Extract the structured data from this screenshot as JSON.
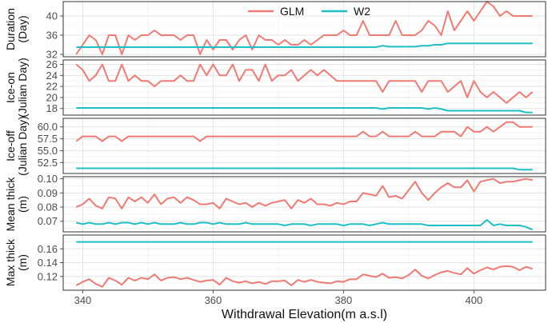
{
  "chart_data": {
    "type": "line",
    "xlabel": "Withdrawal Elevation(m a.s.l)",
    "xlim": [
      337,
      411
    ],
    "xticks": [
      "340",
      "360",
      "380",
      "400"
    ],
    "xtick_values": [
      340,
      360,
      380,
      400
    ],
    "legend": {
      "placement": "top-center",
      "entries": [
        {
          "name": "GLM",
          "color": "#f07a73"
        },
        {
          "name": "W2",
          "color": "#1fbfc6"
        }
      ]
    },
    "grid": true,
    "x": [
      339,
      340,
      341,
      342,
      343,
      344,
      345,
      346,
      347,
      348,
      349,
      350,
      351,
      352,
      353,
      354,
      355,
      356,
      357,
      358,
      359,
      360,
      361,
      362,
      363,
      364,
      365,
      366,
      367,
      368,
      369,
      370,
      371,
      372,
      373,
      374,
      375,
      376,
      377,
      378,
      379,
      380,
      381,
      382,
      383,
      384,
      385,
      386,
      387,
      388,
      389,
      390,
      391,
      392,
      393,
      394,
      395,
      396,
      397,
      398,
      399,
      400,
      401,
      402,
      403,
      404,
      405,
      406,
      407,
      408,
      409
    ],
    "panels": [
      {
        "ylabel": [
          "Duration",
          "(Day)"
        ],
        "ylim": [
          31.5,
          43
        ],
        "yticks": [
          "32",
          "36",
          "40"
        ],
        "ytick_values": [
          32,
          36,
          40
        ],
        "series": [
          {
            "name": "GLM",
            "values": [
              32,
              34,
              36,
              35,
              32,
              36,
              36,
              32,
              36,
              35,
              36,
              36,
              37,
              36,
              36,
              36,
              35,
              36,
              36,
              32,
              35,
              33,
              35,
              35,
              33,
              35,
              36,
              33,
              36,
              35,
              35,
              34,
              35,
              34,
              34,
              35,
              34,
              35,
              36,
              36,
              36,
              37,
              36,
              36,
              39,
              36,
              36,
              36,
              36,
              39,
              36,
              36,
              36,
              37,
              39,
              38,
              36,
              41,
              37,
              39,
              41,
              39,
              41,
              43,
              42,
              40,
              41,
              40,
              40,
              40,
              40
            ]
          },
          {
            "name": "W2",
            "values": [
              33.5,
              33.5,
              33.5,
              33.5,
              33.5,
              33.5,
              33.5,
              33.5,
              33.5,
              33.5,
              33.5,
              33.5,
              33.5,
              33.5,
              33.5,
              33.5,
              33.5,
              33.5,
              33.5,
              33.5,
              33.5,
              33.5,
              33.5,
              33.5,
              33.5,
              33.5,
              33.5,
              33.5,
              33.5,
              33.5,
              33.5,
              33.5,
              33.5,
              33.5,
              33.5,
              33.5,
              33.5,
              33.5,
              33.5,
              33.5,
              33.5,
              33.5,
              33.5,
              33.5,
              33.5,
              33.5,
              33.5,
              33.8,
              33.6,
              33.6,
              33.6,
              33.6,
              33.6,
              33.8,
              33.8,
              34,
              34,
              34.3,
              34.3,
              34.3,
              34.3,
              34.3,
              34.3,
              34.3,
              34.3,
              34.3,
              34.3,
              34.3,
              34.3,
              34.3,
              34.3
            ]
          }
        ]
      },
      {
        "ylabel": [
          "Ice-on",
          "(Julian Day)"
        ],
        "ylim": [
          16.8,
          26.8
        ],
        "yticks": [
          "18",
          "20",
          "22",
          "24",
          "26"
        ],
        "ytick_values": [
          18,
          20,
          22,
          24,
          26
        ],
        "series": [
          {
            "name": "GLM",
            "values": [
              26,
              25,
              23,
              24,
              26,
              23,
              23,
              26,
              23,
              24,
              23,
              23,
              22,
              23,
              23,
              23,
              24,
              23,
              23,
              26,
              24,
              26,
              24,
              24,
              26,
              23,
              25,
              25,
              23,
              26,
              23,
              24,
              24,
              25,
              23,
              24,
              25,
              24,
              25,
              24,
              23,
              23,
              23,
              23,
              23,
              23,
              23,
              21,
              23,
              23,
              23,
              23,
              23,
              21,
              23,
              23,
              23,
              21,
              22,
              23,
              20,
              23,
              21,
              20,
              21,
              20,
              19,
              20,
              21,
              20,
              21
            ]
          },
          {
            "name": "W2",
            "values": [
              18.1,
              18.1,
              18.1,
              18.1,
              18.1,
              18.1,
              18.1,
              18.1,
              18.1,
              18.1,
              18.1,
              18.1,
              18.1,
              18.1,
              18.1,
              18.1,
              18.1,
              18.1,
              18.1,
              18.1,
              18.1,
              18.1,
              18.1,
              18.1,
              18.1,
              18.1,
              18.1,
              18.1,
              18.1,
              18.1,
              18.1,
              18.1,
              18.1,
              18.1,
              18.1,
              18.1,
              18.1,
              18.1,
              18.1,
              18.1,
              18.1,
              18.1,
              18.1,
              18.1,
              18.1,
              18.1,
              18.1,
              17.9,
              18.1,
              18.1,
              18.1,
              18.1,
              18.1,
              18.1,
              17.9,
              18.1,
              17.9,
              17.6,
              17.6,
              17.6,
              17.6,
              17.6,
              17.6,
              17.6,
              17.6,
              17.6,
              17.6,
              17.6,
              17.6,
              17.3,
              17.3
            ]
          }
        ]
      },
      {
        "ylabel": [
          "Ice-off",
          "(Julian Day)"
        ],
        "ylim": [
          50.2,
          61.8
        ],
        "yticks": [
          "52.5",
          "55.0",
          "57.5",
          "60.0"
        ],
        "ytick_values": [
          52.5,
          55.0,
          57.5,
          60.0
        ],
        "series": [
          {
            "name": "GLM",
            "values": [
              57,
              58,
              58,
              58,
              57,
              58,
              58,
              57,
              58,
              58,
              58,
              58,
              58,
              58,
              58,
              58,
              58,
              58,
              58,
              57,
              58,
              58,
              58,
              58,
              58,
              58,
              58,
              58,
              58,
              58,
              58,
              58,
              58,
              58,
              58,
              58,
              58,
              58,
              58,
              58,
              58,
              58,
              58,
              58,
              59,
              58,
              58,
              59,
              58,
              58,
              58,
              58,
              59,
              58,
              58,
              58,
              59,
              59,
              59,
              58,
              60,
              59,
              59,
              60,
              59,
              60,
              61,
              61,
              60,
              60,
              60
            ]
          },
          {
            "name": "W2",
            "values": [
              51.3,
              51.3,
              51.3,
              51.3,
              51.3,
              51.3,
              51.3,
              51.3,
              51.3,
              51.3,
              51.3,
              51.3,
              51.3,
              51.3,
              51.3,
              51.3,
              51.3,
              51.3,
              51.3,
              51.3,
              51.3,
              51.3,
              51.3,
              51.3,
              51.3,
              51.3,
              51.3,
              51.3,
              51.3,
              51.3,
              51.3,
              51.3,
              51.3,
              51.3,
              51.3,
              51.3,
              51.3,
              51.3,
              51.3,
              51.3,
              51.3,
              51.3,
              51.3,
              51.3,
              51.3,
              51.3,
              51.3,
              51.3,
              51.3,
              51.3,
              51.3,
              51.3,
              51.3,
              51.3,
              51.3,
              51.3,
              51.3,
              51.3,
              51.3,
              51.3,
              51.3,
              51.3,
              51.3,
              51.3,
              51.3,
              51.3,
              51.3,
              51.3,
              51.0,
              51.0,
              51.0
            ]
          }
        ]
      },
      {
        "ylabel": [
          "Mean thick",
          "(m)"
        ],
        "ylim": [
          0.0625,
          0.1015
        ],
        "yticks": [
          "0.07",
          "0.08",
          "0.09",
          "0.10"
        ],
        "ytick_values": [
          0.07,
          0.08,
          0.09,
          0.1
        ],
        "series": [
          {
            "name": "GLM",
            "values": [
              0.08,
              0.082,
              0.086,
              0.081,
              0.079,
              0.087,
              0.086,
              0.079,
              0.087,
              0.084,
              0.087,
              0.083,
              0.089,
              0.082,
              0.086,
              0.087,
              0.083,
              0.087,
              0.085,
              0.082,
              0.082,
              0.083,
              0.079,
              0.086,
              0.084,
              0.082,
              0.083,
              0.08,
              0.083,
              0.081,
              0.083,
              0.084,
              0.085,
              0.079,
              0.085,
              0.083,
              0.086,
              0.082,
              0.082,
              0.081,
              0.083,
              0.082,
              0.084,
              0.084,
              0.09,
              0.089,
              0.088,
              0.095,
              0.087,
              0.088,
              0.086,
              0.092,
              0.098,
              0.09,
              0.085,
              0.09,
              0.094,
              0.097,
              0.094,
              0.094,
              0.099,
              0.091,
              0.098,
              0.099,
              0.1,
              0.097,
              0.098,
              0.098,
              0.099,
              0.1,
              0.099
            ]
          },
          {
            "name": "W2",
            "values": [
              0.069,
              0.068,
              0.069,
              0.068,
              0.068,
              0.069,
              0.068,
              0.069,
              0.069,
              0.068,
              0.069,
              0.068,
              0.069,
              0.068,
              0.068,
              0.068,
              0.069,
              0.068,
              0.068,
              0.069,
              0.069,
              0.068,
              0.069,
              0.068,
              0.068,
              0.068,
              0.069,
              0.068,
              0.068,
              0.068,
              0.068,
              0.068,
              0.067,
              0.068,
              0.068,
              0.068,
              0.067,
              0.068,
              0.068,
              0.068,
              0.068,
              0.067,
              0.068,
              0.068,
              0.068,
              0.067,
              0.068,
              0.069,
              0.068,
              0.068,
              0.068,
              0.068,
              0.068,
              0.068,
              0.067,
              0.067,
              0.067,
              0.067,
              0.067,
              0.067,
              0.067,
              0.067,
              0.067,
              0.071,
              0.067,
              0.068,
              0.067,
              0.067,
              0.067,
              0.066,
              0.064
            ]
          }
        ]
      },
      {
        "ylabel": [
          "Max thick",
          "(m)"
        ],
        "ylim": [
          0.1,
          0.18
        ],
        "yticks": [
          "0.12",
          "0.14",
          "0.16"
        ],
        "ytick_values": [
          0.12,
          0.14,
          0.16
        ],
        "series": [
          {
            "name": "GLM",
            "values": [
              0.107,
              0.112,
              0.116,
              0.109,
              0.105,
              0.118,
              0.114,
              0.108,
              0.118,
              0.114,
              0.118,
              0.116,
              0.123,
              0.114,
              0.118,
              0.119,
              0.116,
              0.118,
              0.115,
              0.112,
              0.114,
              0.115,
              0.108,
              0.118,
              0.113,
              0.111,
              0.113,
              0.11,
              0.112,
              0.109,
              0.113,
              0.113,
              0.114,
              0.107,
              0.115,
              0.112,
              0.115,
              0.112,
              0.111,
              0.11,
              0.113,
              0.112,
              0.116,
              0.116,
              0.123,
              0.121,
              0.119,
              0.124,
              0.118,
              0.119,
              0.117,
              0.122,
              0.13,
              0.121,
              0.117,
              0.122,
              0.126,
              0.128,
              0.125,
              0.123,
              0.132,
              0.124,
              0.129,
              0.133,
              0.13,
              0.134,
              0.135,
              0.134,
              0.129,
              0.134,
              0.131
            ]
          },
          {
            "name": "W2",
            "values": [
              0.17,
              0.17,
              0.17,
              0.17,
              0.17,
              0.17,
              0.17,
              0.17,
              0.17,
              0.17,
              0.17,
              0.17,
              0.17,
              0.17,
              0.17,
              0.17,
              0.17,
              0.17,
              0.17,
              0.17,
              0.17,
              0.17,
              0.17,
              0.17,
              0.17,
              0.17,
              0.17,
              0.17,
              0.17,
              0.17,
              0.17,
              0.17,
              0.17,
              0.17,
              0.17,
              0.17,
              0.17,
              0.17,
              0.17,
              0.17,
              0.17,
              0.17,
              0.17,
              0.17,
              0.17,
              0.17,
              0.17,
              0.17,
              0.17,
              0.17,
              0.17,
              0.17,
              0.17,
              0.17,
              0.17,
              0.17,
              0.17,
              0.17,
              0.17,
              0.17,
              0.17,
              0.17,
              0.17,
              0.17,
              0.17,
              0.17,
              0.17,
              0.17,
              0.17,
              0.17,
              0.17
            ]
          }
        ]
      }
    ]
  }
}
